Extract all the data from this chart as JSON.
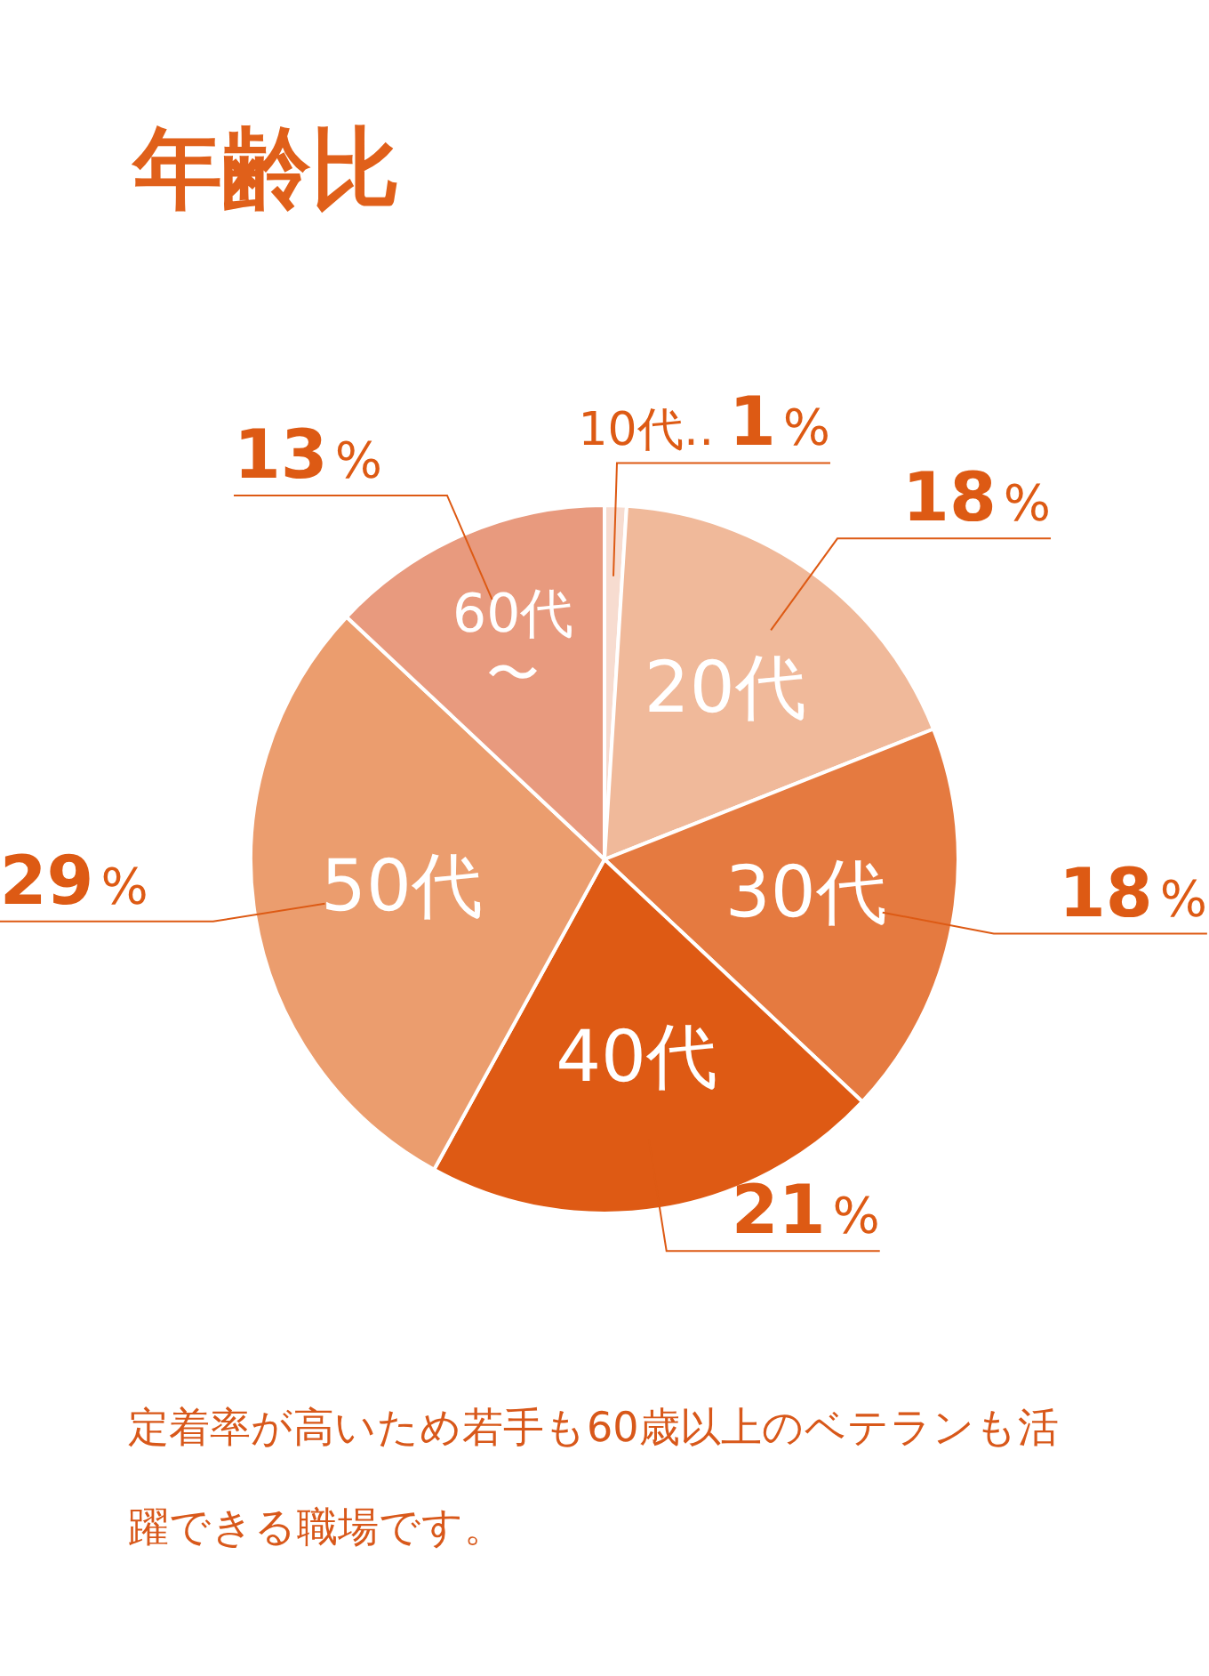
{
  "chart_data": {
    "type": "pie",
    "title": "年齢比",
    "categories": [
      "10代‥",
      "20代",
      "30代",
      "40代",
      "50代",
      "60代〜"
    ],
    "values": [
      1,
      18,
      18,
      21,
      29,
      13
    ],
    "colors": [
      "#f7dcd0",
      "#f0b99a",
      "#e57a40",
      "#de5a14",
      "#eb9d6e",
      "#e89a7e"
    ],
    "value_labels": [
      "1%",
      "18%",
      "18%",
      "21%",
      "29%",
      "13%"
    ],
    "annotations": [
      "定着率が高いため若手も60歳以上のベテランも活躍できる職場です。"
    ]
  }
}
